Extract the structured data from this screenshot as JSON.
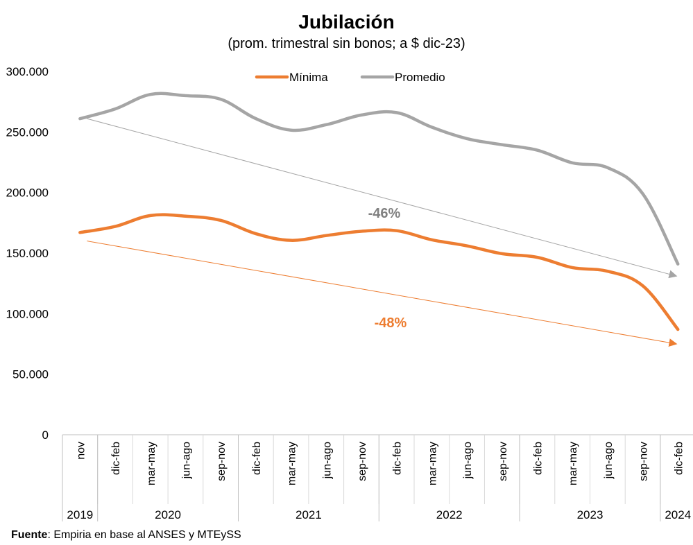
{
  "chart_data": {
    "type": "line",
    "title": "Jubilación",
    "subtitle": "(prom. trimestral sin bonos; a $ dic-23)",
    "ylim": [
      0,
      300000
    ],
    "y_ticks": [
      0,
      50000,
      100000,
      150000,
      200000,
      250000,
      300000
    ],
    "y_tick_labels": [
      "0",
      "50.000",
      "100.000",
      "150.000",
      "200.000",
      "250.000",
      "300.000"
    ],
    "categories": [
      "nov",
      "dic-feb",
      "mar-may",
      "jun-ago",
      "sep-nov",
      "dic-feb",
      "mar-may",
      "jun-ago",
      "sep-nov",
      "dic-feb",
      "mar-may",
      "jun-ago",
      "sep-nov",
      "dic-feb",
      "mar-may",
      "jun-ago",
      "sep-nov",
      "dic-feb"
    ],
    "year_groups": [
      {
        "label": "2019",
        "count": 1
      },
      {
        "label": "2020",
        "count": 4
      },
      {
        "label": "2021",
        "count": 4
      },
      {
        "label": "2022",
        "count": 4
      },
      {
        "label": "2023",
        "count": 4
      },
      {
        "label": "2024",
        "count": 1
      }
    ],
    "series": [
      {
        "name": "Mínima",
        "color": "#ED7D31",
        "values": [
          167000,
          172000,
          181000,
          180500,
          177000,
          166000,
          160500,
          164500,
          168000,
          168500,
          161000,
          156000,
          149500,
          146500,
          138000,
          135000,
          123000,
          87000
        ]
      },
      {
        "name": "Promedio",
        "color": "#A5A5A5",
        "values": [
          261000,
          269000,
          281000,
          280000,
          277000,
          261000,
          251500,
          256000,
          264000,
          266000,
          254000,
          244500,
          239500,
          235000,
          224500,
          220500,
          199000,
          141000
        ]
      }
    ],
    "trend_arrows": [
      {
        "series": "Promedio",
        "from": {
          "category_index": 0,
          "value": 261000
        },
        "to": {
          "category_index": 17,
          "value": 131000
        },
        "color": "#A5A5A5",
        "label": "-46%"
      },
      {
        "series": "Mínima",
        "from": {
          "category_index": 0,
          "value": 160000
        },
        "to": {
          "category_index": 17,
          "value": 75000
        },
        "color": "#ED7D31",
        "label": "-48%"
      }
    ],
    "legend_position": "top-center",
    "grid": false
  },
  "source": {
    "label": "Fuente",
    "text": ": Empiria en base al ANSES y MTEySS"
  }
}
